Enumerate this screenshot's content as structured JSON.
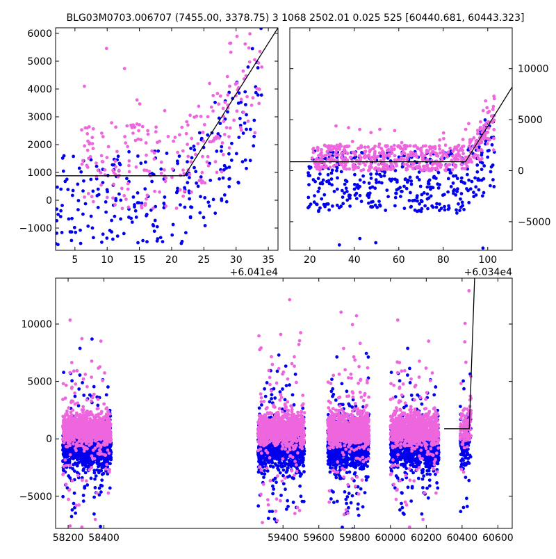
{
  "title": "BLG03M0703.006707 (7455.00, 3378.75)   3 1068 2502.01 0.025 525 [60440.681, 60443.323]",
  "colors": {
    "blue": "#0000ee",
    "pink": "#ee66dd",
    "line": "#000000"
  },
  "chart_data": [
    {
      "type": "scatter",
      "panel": "top-left",
      "xlim": [
        2,
        36.5
      ],
      "ylim": [
        -1800,
        6200
      ],
      "x_ticks": [
        5,
        10,
        15,
        20,
        25,
        30,
        35
      ],
      "x_tick_labels": [
        "5",
        "10",
        "15",
        "20",
        "25",
        "30",
        "35"
      ],
      "x_offset_label": "+6.041e4",
      "y_ticks": [
        -1000,
        0,
        1000,
        2000,
        3000,
        4000,
        5000,
        6000
      ],
      "y_tick_labels": [
        "−1000",
        "0",
        "1000",
        "2000",
        "3000",
        "4000",
        "5000",
        "6000"
      ],
      "y_axis_side": "left",
      "model_line": {
        "x": [
          2,
          22,
          36.5
        ],
        "y": [
          880,
          880,
          6200
        ]
      },
      "series": [
        {
          "color": "blue",
          "x_range": [
            2,
            34
          ],
          "y_spread": [
            -1600,
            1800
          ],
          "npts": 260
        },
        {
          "color": "pink",
          "x_range": [
            6,
            34
          ],
          "y_spread": [
            -300,
            2800
          ],
          "npts": 240
        }
      ]
    },
    {
      "type": "scatter",
      "panel": "top-right",
      "xlim": [
        11,
        111
      ],
      "ylim": [
        -7800,
        14000
      ],
      "x_ticks": [
        20,
        40,
        60,
        80,
        100
      ],
      "x_tick_labels": [
        "20",
        "40",
        "60",
        "80",
        "100"
      ],
      "x_offset_label": "+6.034e4",
      "y_ticks": [
        -5000,
        0,
        5000,
        10000
      ],
      "y_tick_labels": [
        "−5000",
        "0",
        "5000",
        "10000"
      ],
      "y_axis_side": "right",
      "model_line": {
        "x": [
          11,
          90,
          111
        ],
        "y": [
          880,
          880,
          8200
        ]
      },
      "series": [
        {
          "color": "blue",
          "x_range": [
            19,
            103
          ],
          "y_spread": [
            -4000,
            2000
          ],
          "npts": 420
        },
        {
          "color": "pink",
          "x_range": [
            21,
            103
          ],
          "y_spread": [
            0,
            2500
          ],
          "npts": 520
        }
      ]
    },
    {
      "type": "scatter",
      "panel": "bottom",
      "xlim": [
        58130,
        60680
      ],
      "ylim": [
        -7800,
        14000
      ],
      "broken_x_axis": true,
      "x_ticks": [
        58200,
        58400,
        59400,
        59600,
        59800,
        60000,
        60200,
        60400,
        60600
      ],
      "x_tick_labels": [
        "58200",
        "58400",
        "59400",
        "59600",
        "59800",
        "60000",
        "60200",
        "60400",
        "60600"
      ],
      "y_ticks": [
        -5000,
        0,
        5000,
        10000
      ],
      "y_tick_labels": [
        "−5000",
        "0",
        "5000",
        "10000"
      ],
      "y_axis_side": "left",
      "seasons": [
        [
          58170,
          58440
        ],
        [
          59260,
          59520
        ],
        [
          59650,
          59880
        ],
        [
          60000,
          60270
        ],
        [
          60390,
          60450
        ]
      ],
      "model_line": {
        "x": [
          60300,
          60440,
          60470
        ],
        "y": [
          880,
          880,
          14000
        ]
      }
    }
  ]
}
